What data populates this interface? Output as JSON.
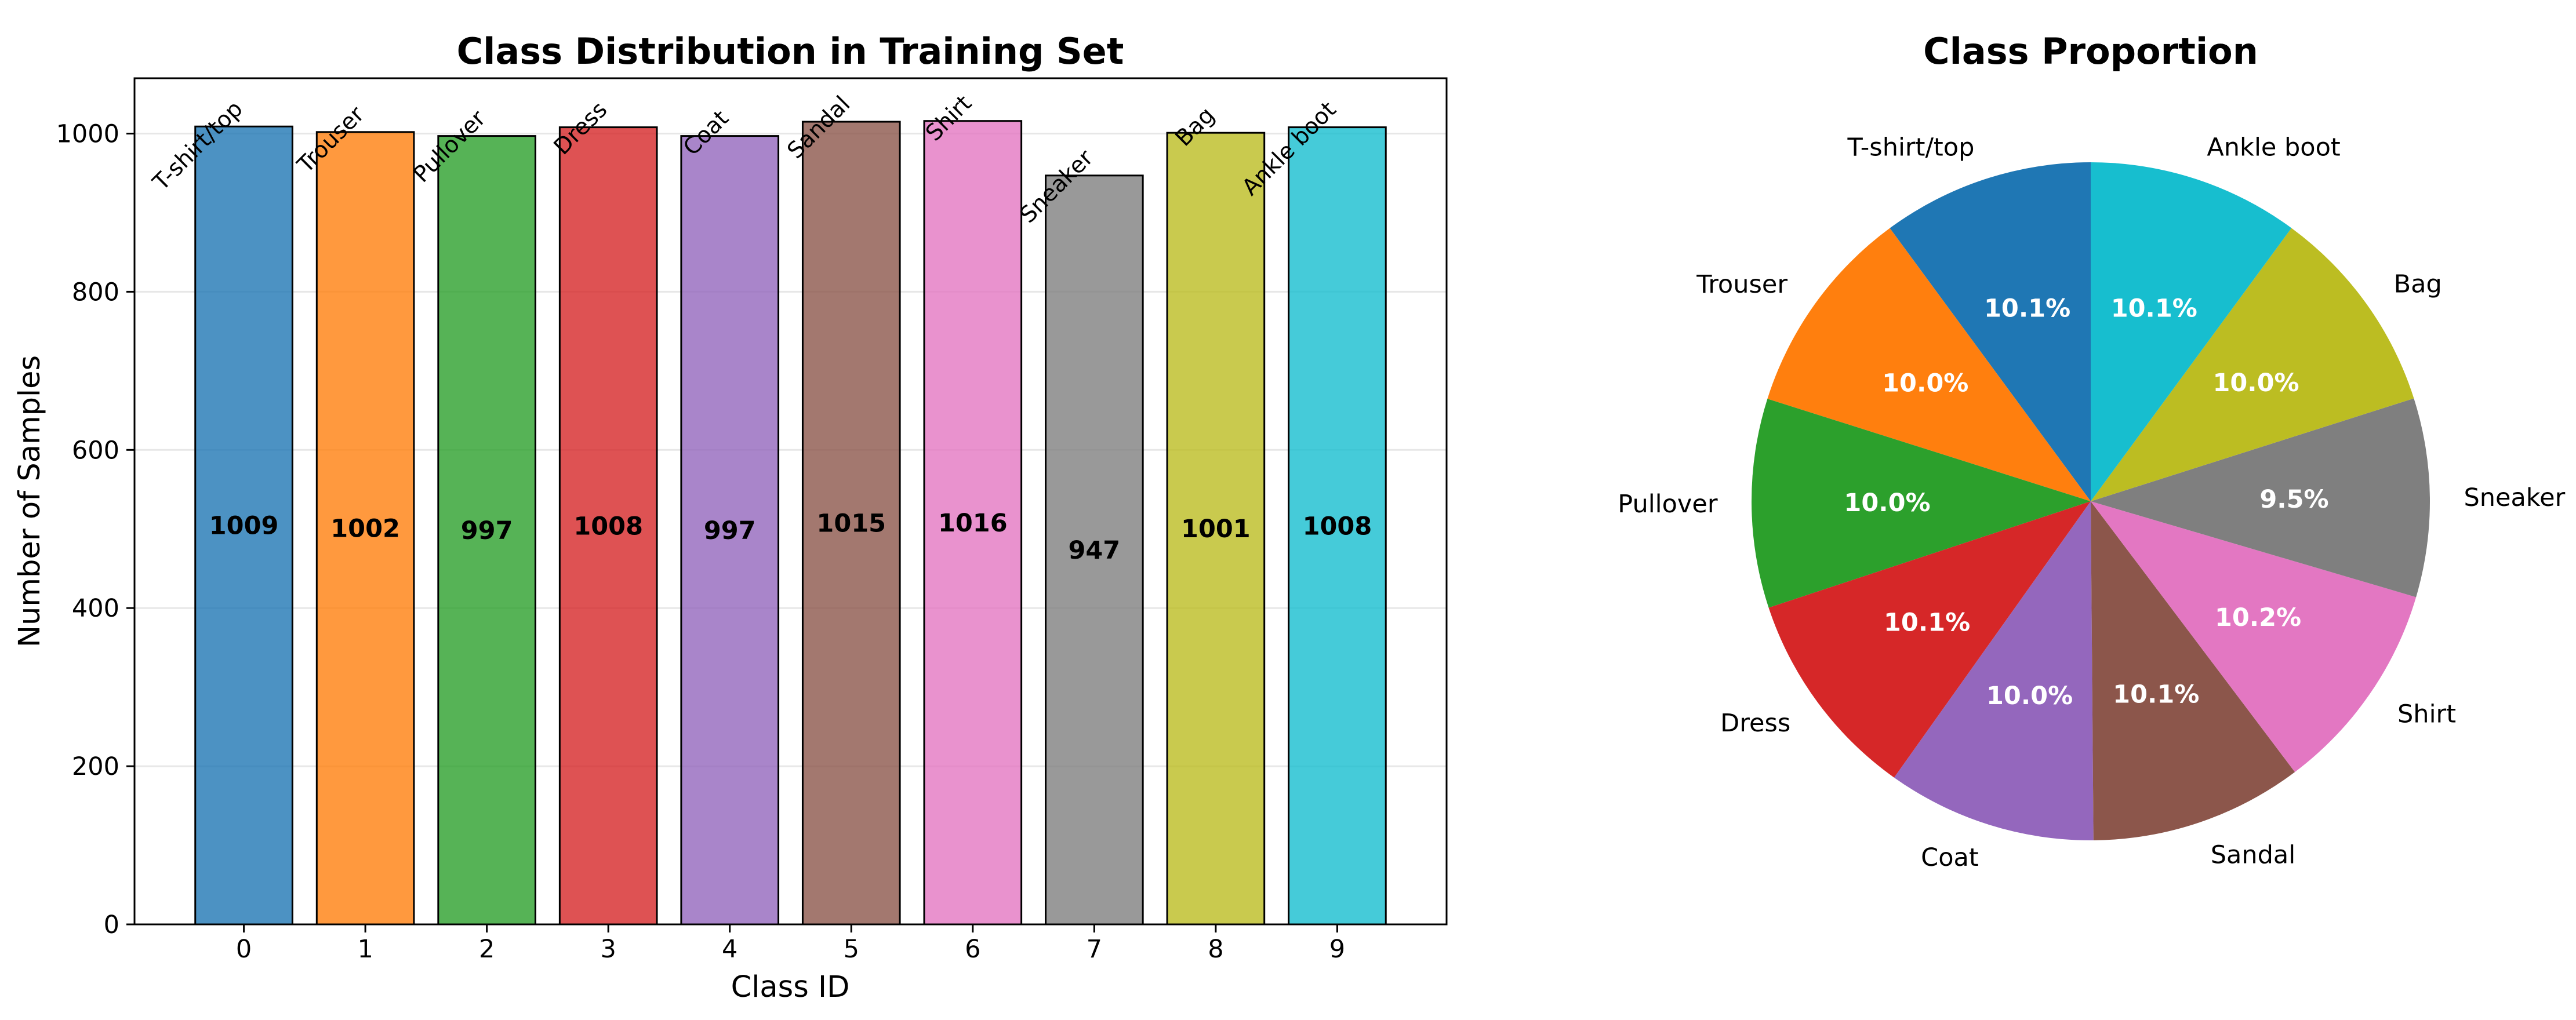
{
  "chart_data": [
    {
      "type": "bar",
      "title": "Class Distribution in Training Set",
      "xlabel": "Class ID",
      "ylabel": "Number of Samples",
      "categories": [
        "0",
        "1",
        "2",
        "3",
        "4",
        "5",
        "6",
        "7",
        "8",
        "9"
      ],
      "class_names": [
        "T-shirt/top",
        "Trouser",
        "Pullover",
        "Dress",
        "Coat",
        "Sandal",
        "Shirt",
        "Sneaker",
        "Bag",
        "Ankle boot"
      ],
      "values": [
        1009,
        1002,
        997,
        1008,
        997,
        1015,
        1016,
        947,
        1001,
        1008
      ],
      "ylim": [
        0,
        1070
      ],
      "yticks": [
        0,
        200,
        400,
        600,
        800,
        1000
      ],
      "grid": "y",
      "colors": [
        "#1f77b4",
        "#ff7f0e",
        "#2ca02c",
        "#d62728",
        "#9467bd",
        "#8c564b",
        "#e377c2",
        "#7f7f7f",
        "#bcbd22",
        "#17becf"
      ]
    },
    {
      "type": "pie",
      "title": "Class Proportion",
      "labels": [
        "T-shirt/top",
        "Trouser",
        "Pullover",
        "Dress",
        "Coat",
        "Sandal",
        "Shirt",
        "Sneaker",
        "Bag",
        "Ankle boot"
      ],
      "values": [
        1009,
        1002,
        997,
        1008,
        997,
        1015,
        1016,
        947,
        1001,
        1008
      ],
      "percent_labels": [
        "10.1%",
        "10.0%",
        "10.0%",
        "10.1%",
        "10.0%",
        "10.1%",
        "10.2%",
        "9.5%",
        "10.0%",
        "10.1%"
      ],
      "start_angle_deg": 90,
      "direction": "counterclockwise",
      "colors": [
        "#1f77b4",
        "#ff7f0e",
        "#2ca02c",
        "#d62728",
        "#9467bd",
        "#8c564b",
        "#e377c2",
        "#7f7f7f",
        "#bcbd22",
        "#17becf"
      ]
    }
  ]
}
